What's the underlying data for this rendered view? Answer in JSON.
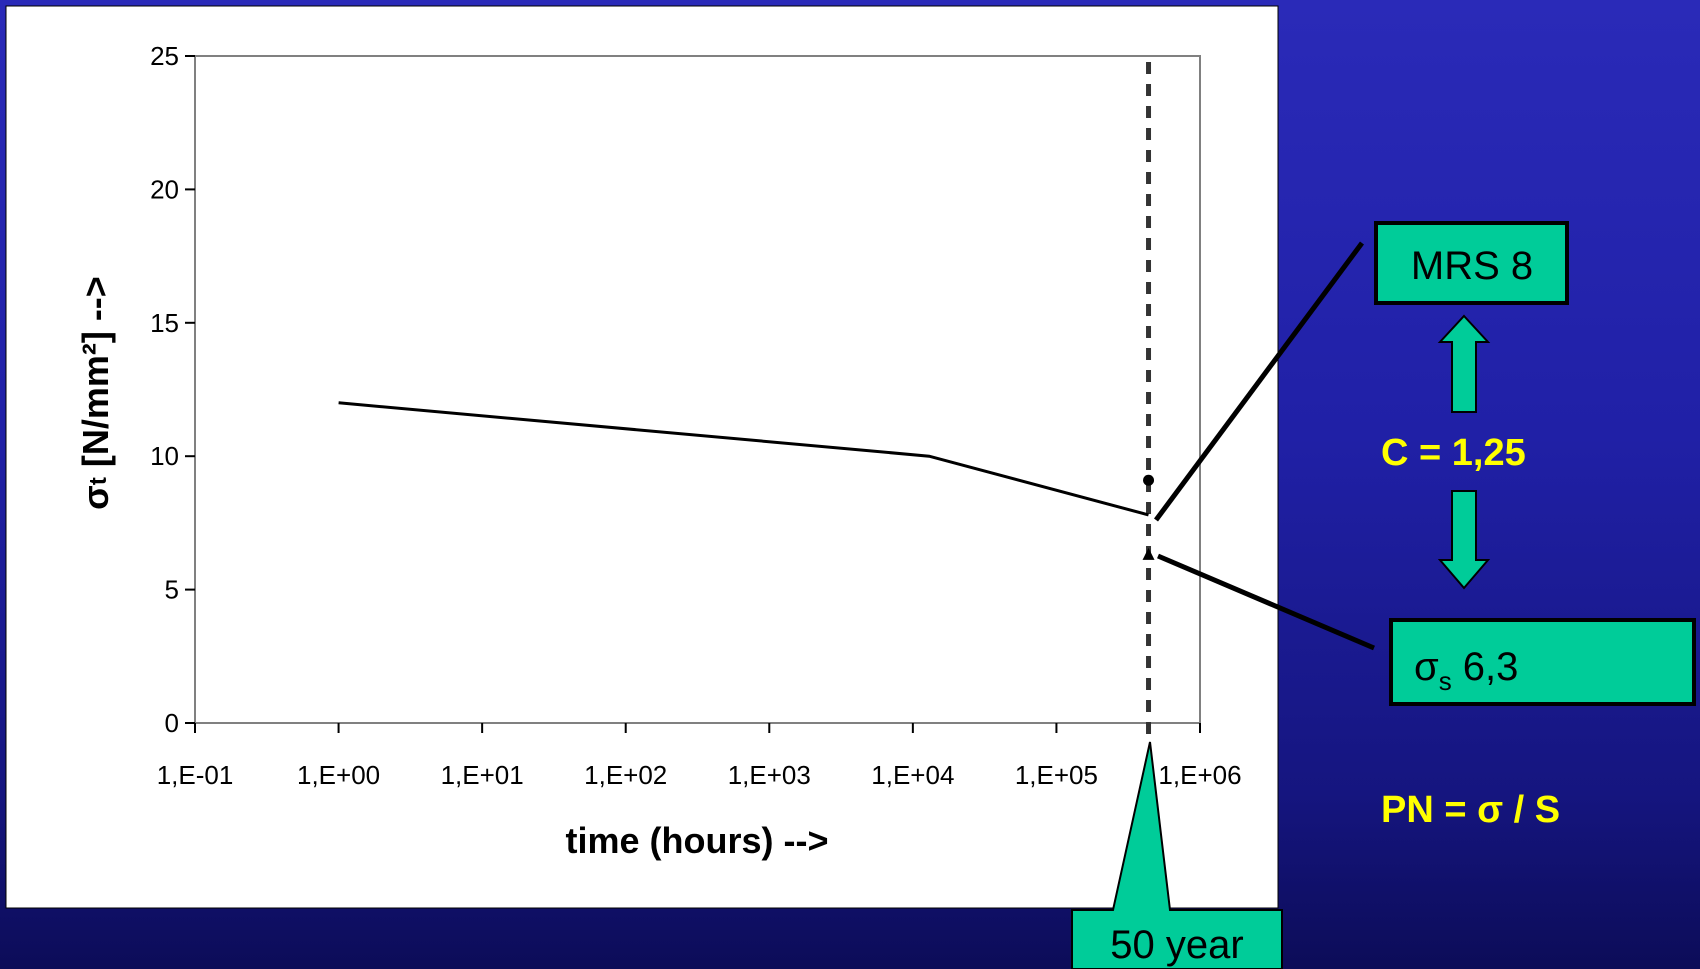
{
  "colors": {
    "background": "#2020a6",
    "accent_green": "#00cc99",
    "label_yellow": "#ffff00",
    "line": "#000000"
  },
  "chart_data": {
    "type": "line",
    "x_scale": "log",
    "xlabel": "time (hours) -->",
    "ylabel_main": "σ",
    "ylabel_sub": "t",
    "ylabel_rest": " [N/mm²] -->",
    "xlim": [
      0.1,
      1000000
    ],
    "ylim": [
      0,
      25
    ],
    "x_ticks": [
      0.1,
      1,
      10,
      100,
      1000,
      10000,
      100000,
      1000000
    ],
    "x_tick_labels": [
      "1,E-01",
      "1,E+00",
      "1,E+01",
      "1,E+02",
      "1,E+03",
      "1,E+04",
      "1,E+05",
      "1,E+06"
    ],
    "y_ticks": [
      0,
      5,
      10,
      15,
      20,
      25
    ],
    "y_tick_labels": [
      "0",
      "5",
      "10",
      "15",
      "20",
      "25"
    ],
    "grid": false,
    "series": [
      {
        "x": [
          1,
          13000,
          438000
        ],
        "y": [
          12,
          10,
          7.8
        ]
      }
    ],
    "markers": [
      {
        "shape": "circle",
        "x": 438000,
        "y": 9.1
      },
      {
        "shape": "triangle",
        "x": 438000,
        "y": 6.3
      }
    ],
    "vline_x": 438000
  },
  "annotations": {
    "mrs_box": "MRS 8",
    "sigma_box_symbol": "σ",
    "sigma_box_sub": "s",
    "sigma_box_value": " 6,3",
    "c_label": "C = 1,25",
    "pn_label": "PN = σ / S",
    "fifty_year": "50 year"
  }
}
